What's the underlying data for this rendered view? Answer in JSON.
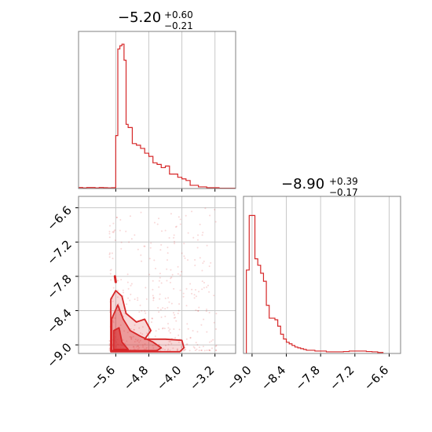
{
  "colors": {
    "accent": "#d62728",
    "grid": "#c8c8c8",
    "frame": "#808080"
  },
  "chart_data": [
    {
      "type": "histogram",
      "panel": "top-left",
      "title": {
        "median": "−5.20",
        "plus": "+0.60",
        "minus": "−0.21"
      },
      "xlim": [
        -6.5,
        -2.7
      ],
      "bins_x": [
        -6.5,
        -6.4,
        -6.3,
        -6.2,
        -6.1,
        -6.0,
        -5.9,
        -5.8,
        -5.7,
        -5.6,
        -5.55,
        -5.5,
        -5.45,
        -5.4,
        -5.35,
        -5.3,
        -5.2,
        -5.1,
        -5.0,
        -4.9,
        -4.8,
        -4.7,
        -4.6,
        -4.5,
        -4.4,
        -4.3,
        -4.2,
        -4.1,
        -4.0,
        -3.9,
        -3.8,
        -3.7,
        -3.6,
        -3.5,
        -3.4,
        -3.3,
        -3.2,
        -3.1,
        -3.0,
        -2.9,
        -2.8,
        -2.7
      ],
      "counts": [
        0.6,
        0.4,
        0.6,
        0.6,
        0.4,
        0.6,
        0.5,
        0.4,
        0.5,
        33,
        87,
        89,
        90,
        80,
        40,
        38,
        28,
        27,
        25,
        22,
        20,
        16,
        15,
        13,
        14,
        9,
        9,
        7,
        6,
        5,
        2,
        2,
        1,
        1,
        0.5,
        0.5,
        0.5,
        0.2,
        0.2,
        0.2,
        0.2
      ],
      "ymax": 95,
      "xticks": [
        -5.6,
        -4.8,
        -4.0,
        -3.2
      ]
    },
    {
      "type": "histogram",
      "panel": "bottom-right",
      "title": {
        "median": "−8.90",
        "plus": "+0.39",
        "minus": "−0.17"
      },
      "xlim": [
        -9.15,
        -6.4
      ],
      "xticks": [
        -9.0,
        -8.4,
        -7.8,
        -7.2,
        -6.6
      ],
      "xtick_labels": [
        "−9.0",
        "−8.4",
        "−7.8",
        "−7.2",
        "−6.6"
      ],
      "bins_x": [
        -9.1,
        -9.05,
        -9.0,
        -8.95,
        -8.9,
        -8.85,
        -8.8,
        -8.75,
        -8.7,
        -8.65,
        -8.6,
        -8.55,
        -8.5,
        -8.45,
        -8.4,
        -8.35,
        -8.3,
        -8.25,
        -8.2,
        -8.15,
        -8.1,
        -8.05,
        -8.0,
        -7.9,
        -7.8,
        -7.7,
        -7.6,
        -7.5,
        -7.4,
        -7.3,
        -7.2,
        -7.1,
        -7.0,
        -6.9,
        -6.8,
        -6.7
      ],
      "counts": [
        52,
        86,
        86,
        59,
        55,
        50,
        45,
        30,
        22,
        22,
        21,
        17,
        12,
        9,
        7,
        6,
        5,
        4,
        3.5,
        3,
        2.5,
        2,
        2,
        1.5,
        1.5,
        1,
        1,
        1,
        1.2,
        1.5,
        1.5,
        1.5,
        1.2,
        1,
        0.6
      ],
      "ymax": 95
    },
    {
      "type": "scatter-contour",
      "panel": "bottom-left",
      "xlim": [
        -6.5,
        -2.7
      ],
      "ylim": [
        -9.15,
        -6.4
      ],
      "xticks": [
        -5.6,
        -4.8,
        -4.0,
        -3.2
      ],
      "xtick_labels": [
        "−5.6",
        "−4.8",
        "−4.0",
        "−3.2"
      ],
      "yticks": [
        -9.0,
        -8.4,
        -7.8,
        -7.2,
        -6.6
      ],
      "ytick_labels": [
        "−9.0",
        "−8.4",
        "−7.8",
        "−7.2",
        "−6.6"
      ],
      "contour_outer": [
        [
          -5.72,
          -9.12
        ],
        [
          -5.72,
          -8.2
        ],
        [
          -5.6,
          -8.05
        ],
        [
          -5.45,
          -8.15
        ],
        [
          -5.35,
          -8.45
        ],
        [
          -5.1,
          -8.6
        ],
        [
          -4.9,
          -8.55
        ],
        [
          -4.75,
          -8.75
        ],
        [
          -4.9,
          -8.9
        ],
        [
          -4.4,
          -8.9
        ],
        [
          -4.0,
          -8.92
        ],
        [
          -3.95,
          -9.05
        ],
        [
          -4.05,
          -9.12
        ]
      ],
      "contour_mid": [
        [
          -5.7,
          -9.1
        ],
        [
          -5.7,
          -8.55
        ],
        [
          -5.55,
          -8.3
        ],
        [
          -5.42,
          -8.55
        ],
        [
          -5.25,
          -8.75
        ],
        [
          -5.0,
          -8.85
        ],
        [
          -4.7,
          -8.95
        ],
        [
          -4.5,
          -9.05
        ],
        [
          -4.6,
          -9.1
        ]
      ],
      "contour_inner": [
        [
          -5.65,
          -9.08
        ],
        [
          -5.65,
          -8.75
        ],
        [
          -5.52,
          -8.7
        ],
        [
          -5.45,
          -8.95
        ],
        [
          -5.3,
          -9.08
        ]
      ],
      "outlier_blob": [
        [
          -5.62,
          -7.8
        ],
        [
          -5.6,
          -7.9
        ]
      ]
    }
  ]
}
